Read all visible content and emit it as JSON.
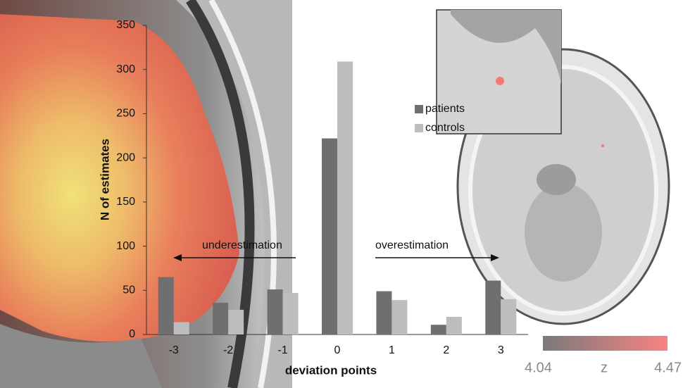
{
  "chart_data": {
    "type": "bar",
    "y_label": "N of estimates",
    "x_label": "deviation points",
    "categories": [
      "-3",
      "-2",
      "-1",
      "0",
      "1",
      "2",
      "3"
    ],
    "series": [
      {
        "name": "patients",
        "color": "#6f6f6f",
        "values": [
          65,
          36,
          51,
          222,
          49,
          11,
          61
        ]
      },
      {
        "name": "controls",
        "color": "#bdbdbd",
        "values": [
          14,
          28,
          47,
          309,
          39,
          20,
          40
        ]
      }
    ],
    "ylim": [
      0,
      350
    ],
    "yticks": [
      0,
      50,
      100,
      150,
      200,
      250,
      300,
      350
    ],
    "annotations": [
      {
        "text": "underestimation"
      },
      {
        "text": "overestimation"
      }
    ],
    "colorbar": {
      "range": [
        4.04,
        4.47
      ],
      "label": "z",
      "colors": [
        "#7a7a7a",
        "#f98282"
      ]
    }
  }
}
